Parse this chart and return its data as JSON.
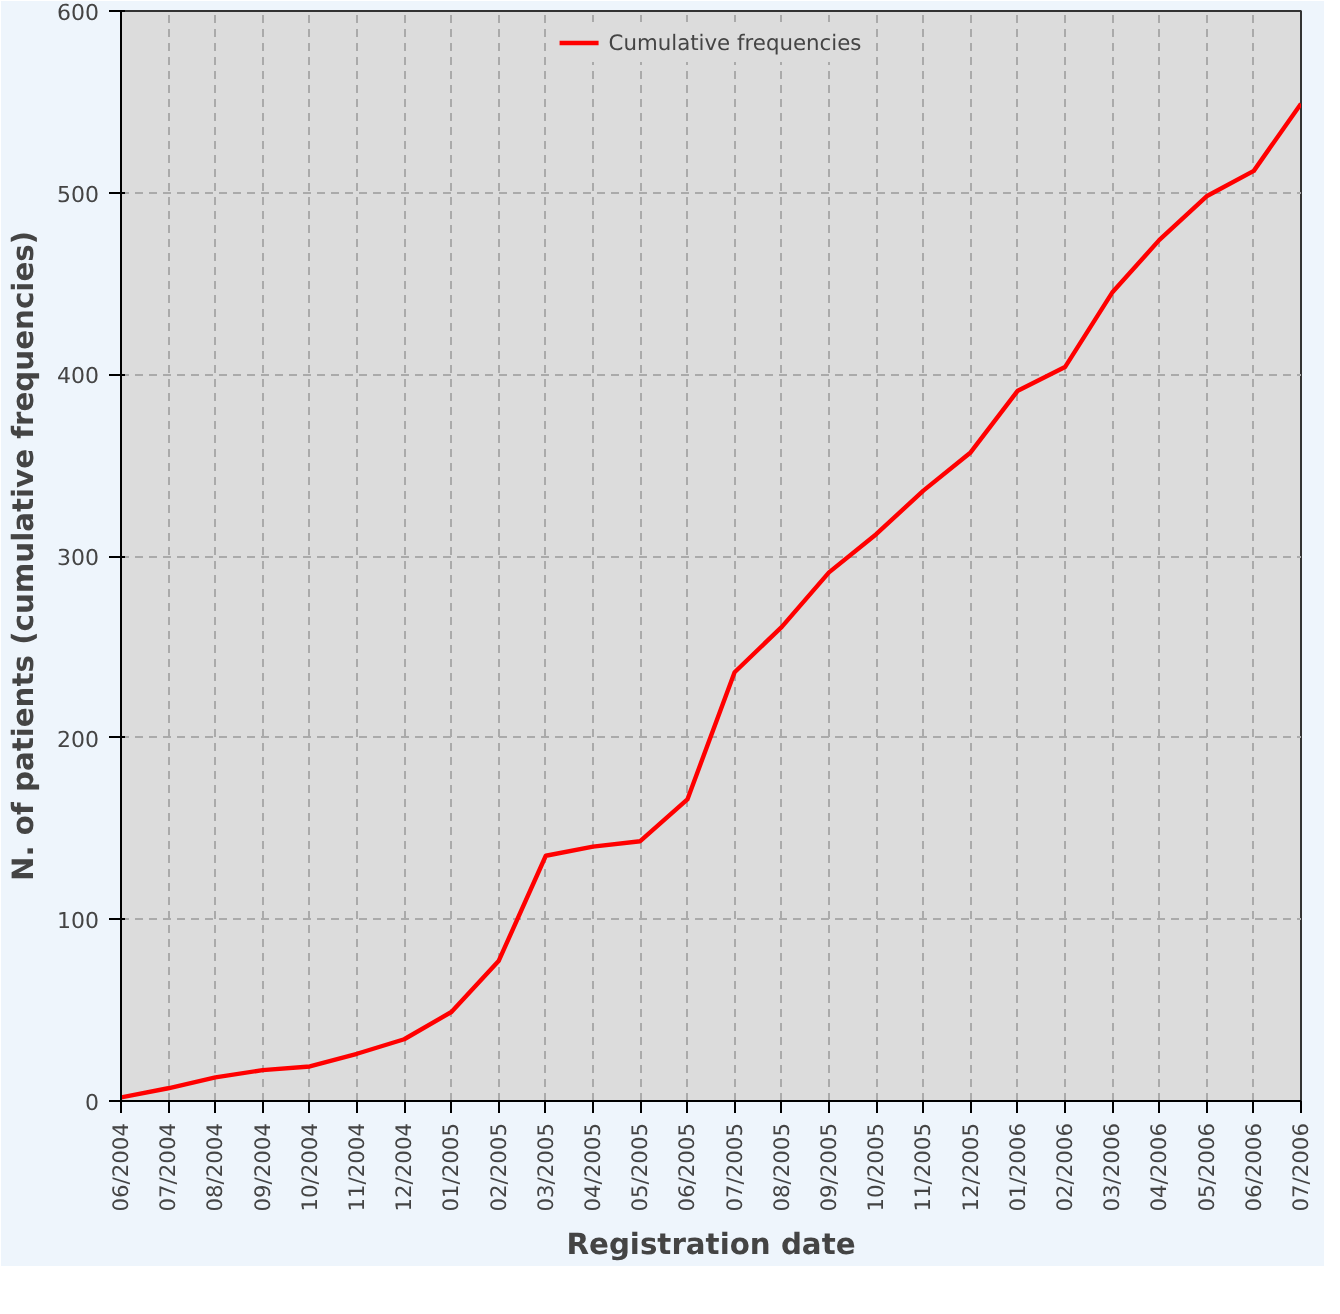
{
  "chart_data": {
    "type": "line",
    "xlabel": "Registration date",
    "ylabel": "N. of patients (cumulative frequencies)",
    "categories": [
      "06/2004",
      "07/2004",
      "08/2004",
      "09/2004",
      "10/2004",
      "11/2004",
      "12/2004",
      "01/2005",
      "02/2005",
      "03/2005",
      "04/2005",
      "05/2005",
      "06/2005",
      "07/2005",
      "08/2005",
      "09/2005",
      "10/2005",
      "11/2005",
      "12/2005",
      "01/2006",
      "02/2006",
      "03/2006",
      "04/2006",
      "05/2006",
      "06/2006",
      "07/2006"
    ],
    "series": [
      {
        "name": "Cumulative frequencies",
        "color": "#ff0000",
        "values": [
          2,
          7,
          13,
          17,
          19,
          26,
          34,
          49,
          77,
          135,
          140,
          143,
          166,
          236,
          261,
          291,
          312,
          336,
          357,
          391,
          404,
          445,
          474,
          498,
          512,
          549
        ]
      }
    ],
    "ylim": [
      0,
      600
    ],
    "yticks": [
      0,
      100,
      200,
      300,
      400,
      500,
      600
    ],
    "grid": true,
    "legend": "top",
    "line_style": "solid",
    "marker": "none"
  }
}
